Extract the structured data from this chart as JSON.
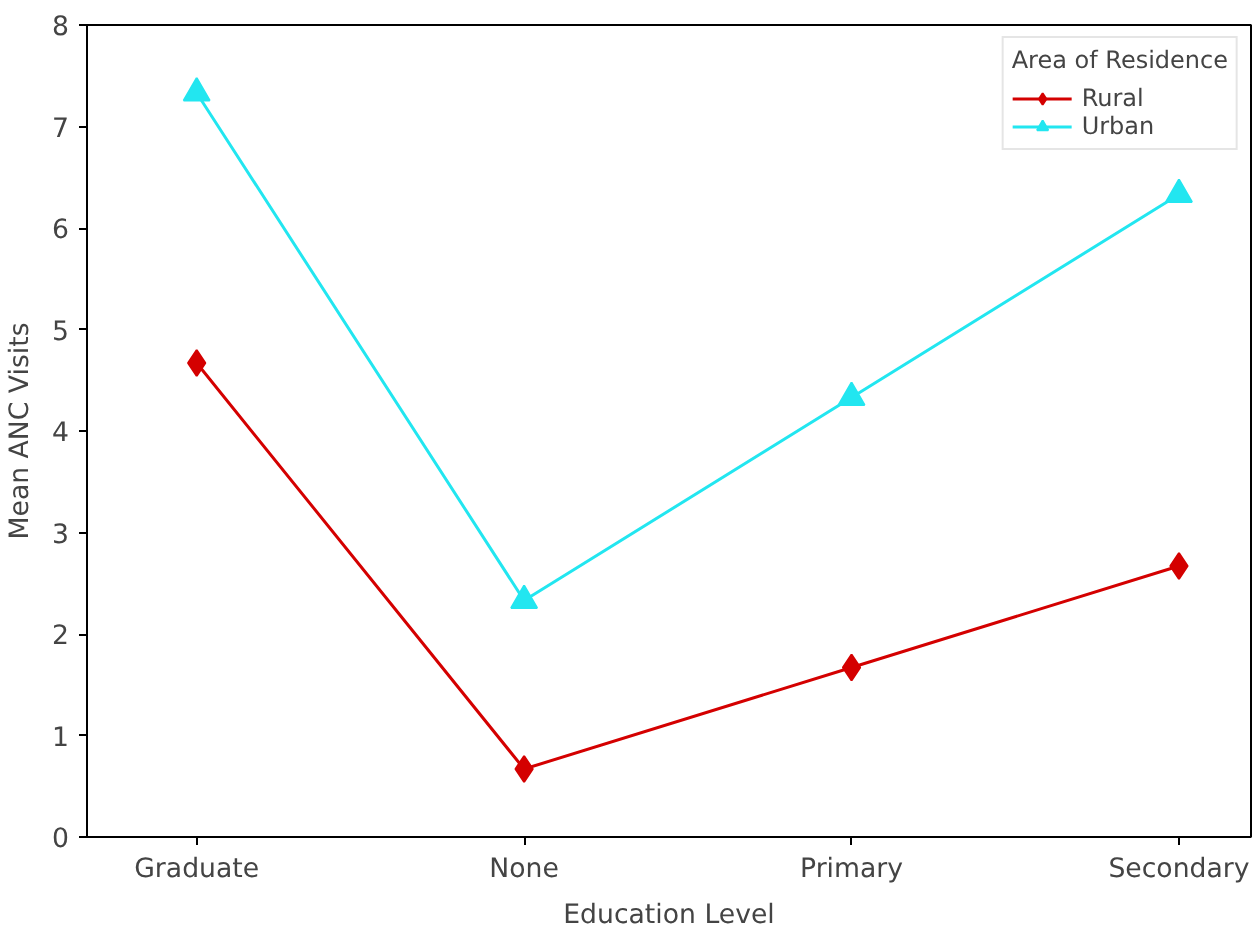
{
  "chart_data": {
    "type": "line",
    "xlabel": "Education Level",
    "ylabel": "Mean ANC Visits",
    "legend_title": "Area of Residence",
    "categories": [
      "Graduate",
      "None",
      "Primary",
      "Secondary"
    ],
    "series": [
      {
        "name": "Rural",
        "color": "#d40000",
        "marker": "diamond",
        "values": [
          4.67,
          0.67,
          1.67,
          2.67
        ]
      },
      {
        "name": "Urban",
        "color": "#22e6f0",
        "marker": "triangle",
        "values": [
          7.33,
          2.33,
          4.33,
          6.33
        ]
      }
    ],
    "ylim": [
      0,
      8
    ],
    "yticks": [
      0,
      1,
      2,
      3,
      4,
      5,
      6,
      7,
      8
    ],
    "legend": "top right",
    "grid": false,
    "line_style": "solid"
  }
}
